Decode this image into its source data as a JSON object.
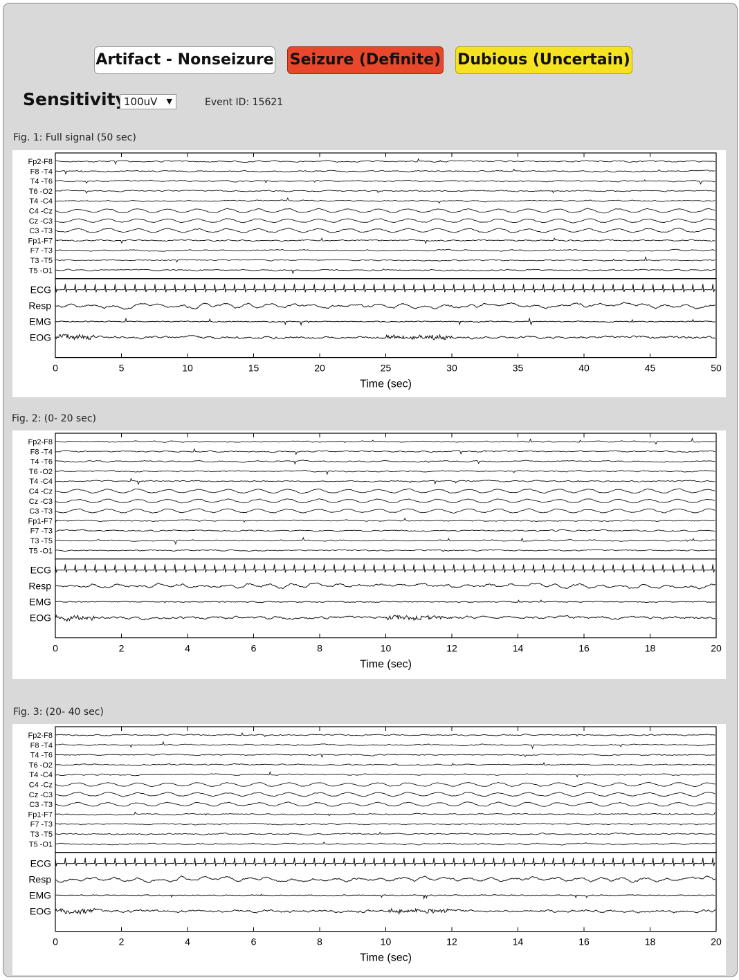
{
  "buttons": {
    "artifact": "Artifact - Nonseizure",
    "seizure": "Seizure (Definite)",
    "dubious": "Dubious (Uncertain)"
  },
  "sensitivity": {
    "label": "Sensitivity:",
    "value": "100uV"
  },
  "event_id": "Event ID: 15621",
  "colors": {
    "seizure": "#e8472b",
    "dubious": "#f5e220",
    "artifact": "#ffffff",
    "background": "#d9d9d9"
  },
  "channels": {
    "eeg": [
      "Fp2-F8",
      "F8 -T4",
      "T4 -T6",
      "T6 -O2",
      "T4 -C4",
      "C4 -Cz",
      "Cz -C3",
      "C3 -T3",
      "Fp1-F7",
      "F7 -T3",
      "T3 -T5",
      "T5 -O1"
    ],
    "poly": [
      "ECG",
      "Resp",
      "EMG",
      "EOG"
    ]
  },
  "figures": [
    {
      "label": "Fig. 1: Full signal (50 sec)",
      "xlabel": "Time (sec)",
      "ticks": [
        "0",
        "5",
        "10",
        "15",
        "20",
        "25",
        "30",
        "35",
        "40",
        "45",
        "50"
      ]
    },
    {
      "label": "Fig. 2: (0- 20 sec)",
      "xlabel": "Time (sec)",
      "ticks": [
        "0",
        "2",
        "4",
        "6",
        "8",
        "10",
        "12",
        "14",
        "16",
        "18",
        "20"
      ]
    },
    {
      "label": "Fig. 3: (20- 40 sec)",
      "xlabel": "Time (sec)",
      "ticks": [
        "0",
        "2",
        "4",
        "6",
        "8",
        "10",
        "12",
        "14",
        "16",
        "18",
        "20"
      ]
    }
  ]
}
